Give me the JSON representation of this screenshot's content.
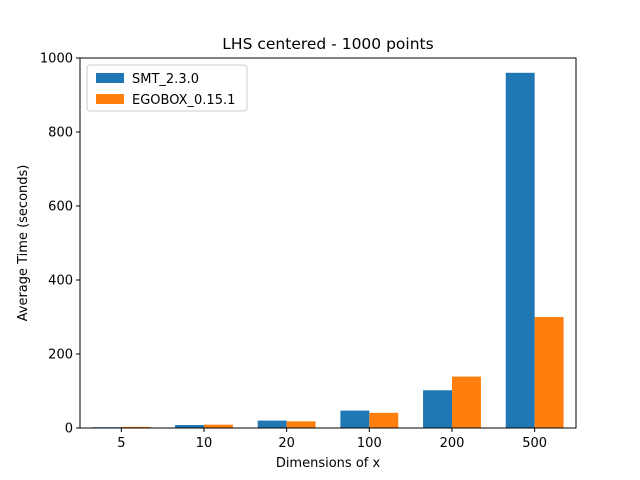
{
  "chart_data": {
    "type": "bar",
    "title": "LHS centered - 1000 points",
    "xlabel": "Dimensions of x",
    "ylabel": "Average Time (seconds)",
    "categories": [
      "5",
      "10",
      "20",
      "100",
      "200",
      "500"
    ],
    "series": [
      {
        "name": "SMT_2.3.0",
        "color": "#1f77b4",
        "values": [
          2,
          8,
          20,
          47,
          102,
          960
        ]
      },
      {
        "name": "EGOBOX_0.15.1",
        "color": "#ff7f0e",
        "values": [
          3,
          9,
          18,
          41,
          139,
          300
        ]
      }
    ],
    "ylim": [
      0,
      1000
    ],
    "yticks": [
      0,
      200,
      400,
      600,
      800,
      1000
    ],
    "grid": false,
    "legend_position": "top-left"
  }
}
